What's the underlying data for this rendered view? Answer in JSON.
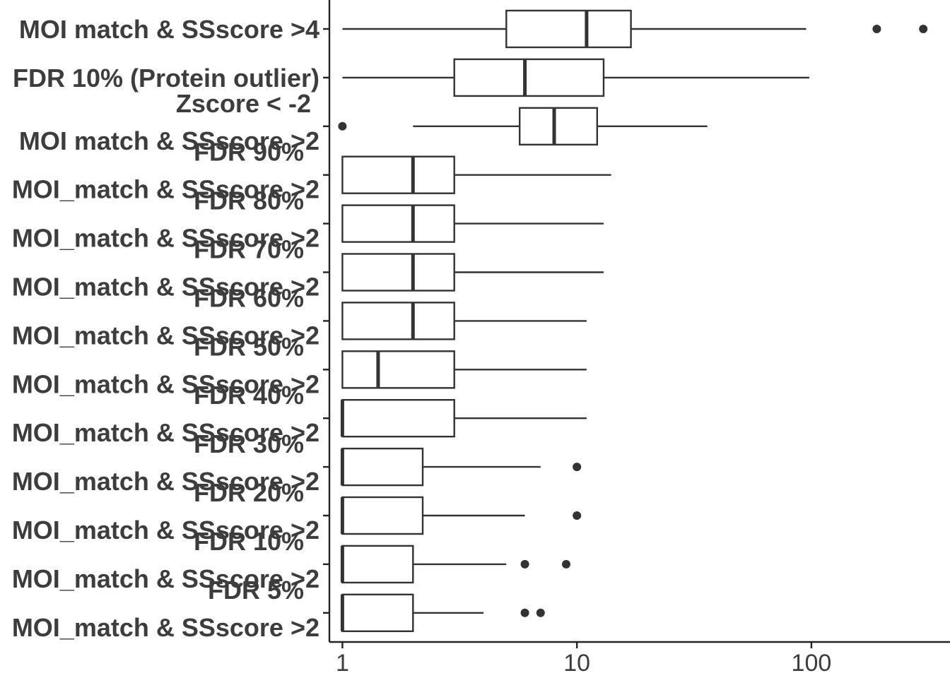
{
  "chart_data": {
    "type": "boxplot",
    "title": "",
    "xlabel": "",
    "ylabel": "",
    "x_scale": "log10",
    "xlim": [
      0.88,
      390
    ],
    "x_ticks": [
      {
        "value": 1,
        "label": "1"
      },
      {
        "value": 10,
        "label": "10"
      },
      {
        "value": 100,
        "label": "100"
      }
    ],
    "grid": false,
    "colors": {
      "box": "#333333",
      "text": "#3d3d3d",
      "axis": "#222222"
    },
    "categories": [
      {
        "lines": [
          "MOI match & SSscore >4"
        ],
        "whisker_low": 1,
        "q1": 5,
        "median": 11,
        "q3": 17,
        "whisker_high": 95,
        "outliers": [
          190,
          300
        ]
      },
      {
        "lines": [
          "FDR 10% (Protein outlier)"
        ],
        "whisker_low": 1,
        "q1": 3,
        "median": 6,
        "q3": 13,
        "whisker_high": 98,
        "outliers": []
      },
      {
        "lines": [
          "Zscore < -2",
          "MOI match & SSscore >2"
        ],
        "whisker_low": 2,
        "q1": 5.7,
        "median": 8,
        "q3": 12.2,
        "whisker_high": 36,
        "outliers": [
          1
        ]
      },
      {
        "lines": [
          "FDR 90%",
          "MOI_match & SSscore >2"
        ],
        "whisker_low": 1,
        "q1": 1,
        "median": 2,
        "q3": 3,
        "whisker_high": 14,
        "outliers": []
      },
      {
        "lines": [
          "FDR 80%",
          "MOI_match & SSscore >2"
        ],
        "whisker_low": 1,
        "q1": 1,
        "median": 2,
        "q3": 3,
        "whisker_high": 13,
        "outliers": []
      },
      {
        "lines": [
          "FDR 70%",
          "MOI_match & SSscore >2"
        ],
        "whisker_low": 1,
        "q1": 1,
        "median": 2,
        "q3": 3,
        "whisker_high": 13,
        "outliers": []
      },
      {
        "lines": [
          "FDR 60%",
          "MOI_match & SSscore >2"
        ],
        "whisker_low": 1,
        "q1": 1,
        "median": 2,
        "q3": 3,
        "whisker_high": 11,
        "outliers": []
      },
      {
        "lines": [
          "FDR 50%",
          "MOI_match & SSscore >2"
        ],
        "whisker_low": 1,
        "q1": 1,
        "median": 1.42,
        "q3": 3,
        "whisker_high": 11,
        "outliers": []
      },
      {
        "lines": [
          "FDR 40%",
          "MOI_match & SSscore >2"
        ],
        "whisker_low": 1,
        "q1": 1,
        "median": 1,
        "q3": 3,
        "whisker_high": 11,
        "outliers": []
      },
      {
        "lines": [
          "FDR 30%",
          "MOI_match & SSscore >2"
        ],
        "whisker_low": 1,
        "q1": 1,
        "median": 1,
        "q3": 2.2,
        "whisker_high": 7,
        "outliers": [
          10
        ]
      },
      {
        "lines": [
          "FDR 20%",
          "MOI_match & SSscore >2"
        ],
        "whisker_low": 1,
        "q1": 1,
        "median": 1,
        "q3": 2.2,
        "whisker_high": 6,
        "outliers": [
          10
        ]
      },
      {
        "lines": [
          "FDR 10%",
          "MOI_match & SSscore >2"
        ],
        "whisker_low": 1,
        "q1": 1,
        "median": 1,
        "q3": 2,
        "whisker_high": 5,
        "outliers": [
          6,
          9
        ]
      },
      {
        "lines": [
          "FDR 5%",
          "MOI_match & SSscore >2"
        ],
        "whisker_low": 1,
        "q1": 1,
        "median": 1,
        "q3": 2,
        "whisker_high": 4,
        "outliers": [
          6,
          7
        ]
      }
    ]
  }
}
